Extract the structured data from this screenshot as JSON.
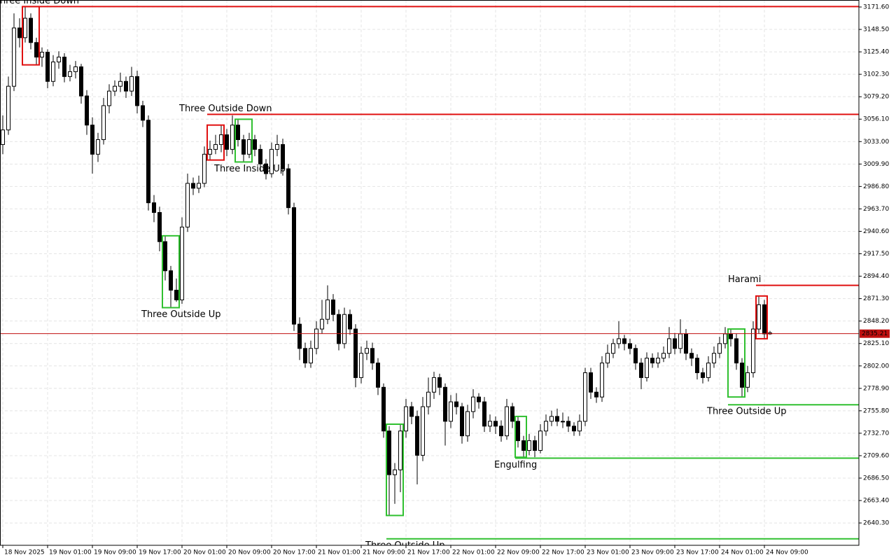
{
  "chart_data": {
    "type": "candlestick",
    "categories": [
      "18 Nov 2025",
      null,
      null,
      null,
      null,
      null,
      null,
      null,
      "19 Nov 01:00",
      null,
      null,
      null,
      null,
      null,
      null,
      null,
      "19 Nov 09:00",
      null,
      null,
      null,
      null,
      null,
      null,
      null,
      "19 Nov 17:00",
      null,
      null,
      null,
      null,
      null,
      null,
      null,
      "20 Nov 01:00",
      null,
      null,
      null,
      null,
      null,
      null,
      null,
      "20 Nov 09:00",
      null,
      null,
      null,
      null,
      null,
      null,
      null,
      "20 Nov 17:00",
      null,
      null,
      null,
      null,
      null,
      null,
      null,
      "21 Nov 01:00",
      null,
      null,
      null,
      null,
      null,
      null,
      null,
      "21 Nov 09:00",
      null,
      null,
      null,
      null,
      null,
      null,
      null,
      "21 Nov 17:00",
      null,
      null,
      null,
      null,
      null,
      null,
      null,
      "22 Nov 01:00",
      null,
      null,
      null,
      null,
      null,
      null,
      null,
      "22 Nov 09:00",
      null,
      null,
      null,
      null,
      null,
      null,
      null,
      "22 Nov 17:00",
      null,
      null,
      null,
      null,
      null,
      null,
      null,
      "23 Nov 01:00",
      null,
      null,
      null,
      null,
      null,
      null,
      null,
      "23 Nov 09:00",
      null,
      null,
      null,
      null,
      null,
      null,
      null,
      "23 Nov 17:00",
      null,
      null,
      null,
      null,
      null,
      null,
      null,
      "24 Nov 01:00",
      null,
      null,
      null,
      null,
      null,
      null,
      null,
      "24 Nov 09:00",
      null
    ],
    "candles": [
      [
        3030,
        3060,
        3020,
        3045
      ],
      [
        3045,
        3100,
        3040,
        3090
      ],
      [
        3090,
        3165,
        3085,
        3150
      ],
      [
        3150,
        3160,
        3130,
        3140
      ],
      [
        3140,
        3172,
        3135,
        3160
      ],
      [
        3160,
        3165,
        3128,
        3135
      ],
      [
        3135,
        3140,
        3112,
        3120
      ],
      [
        3120,
        3130,
        3110,
        3125
      ],
      [
        3125,
        3128,
        3088,
        3095
      ],
      [
        3095,
        3122,
        3090,
        3115
      ],
      [
        3115,
        3126,
        3108,
        3120
      ],
      [
        3120,
        3124,
        3094,
        3100
      ],
      [
        3100,
        3112,
        3095,
        3105
      ],
      [
        3105,
        3116,
        3098,
        3110
      ],
      [
        3110,
        3113,
        3072,
        3080
      ],
      [
        3080,
        3086,
        3040,
        3050
      ],
      [
        3050,
        3058,
        3000,
        3020
      ],
      [
        3020,
        3042,
        3012,
        3035
      ],
      [
        3035,
        3078,
        3030,
        3070
      ],
      [
        3070,
        3092,
        3062,
        3085
      ],
      [
        3085,
        3096,
        3080,
        3090
      ],
      [
        3090,
        3104,
        3084,
        3095
      ],
      [
        3095,
        3100,
        3078,
        3085
      ],
      [
        3085,
        3110,
        3080,
        3100
      ],
      [
        3100,
        3106,
        3062,
        3070
      ],
      [
        3070,
        3075,
        3048,
        3055
      ],
      [
        3055,
        3060,
        2962,
        2970
      ],
      [
        2970,
        2978,
        2950,
        2960
      ],
      [
        2960,
        2966,
        2920,
        2930
      ],
      [
        2930,
        2936,
        2890,
        2900
      ],
      [
        2900,
        2905,
        2862,
        2880
      ],
      [
        2880,
        2892,
        2868,
        2870
      ],
      [
        2870,
        2955,
        2866,
        2945
      ],
      [
        2945,
        3000,
        2940,
        2990
      ],
      [
        2990,
        2996,
        2978,
        2985
      ],
      [
        2985,
        2998,
        2980,
        2990
      ],
      [
        2990,
        3028,
        2986,
        3020
      ],
      [
        3020,
        3034,
        3014,
        3025
      ],
      [
        3025,
        3040,
        3020,
        3030
      ],
      [
        3030,
        3050,
        3022,
        3040
      ],
      [
        3040,
        3046,
        3018,
        3025
      ],
      [
        3025,
        3060,
        3020,
        3050
      ],
      [
        3050,
        3056,
        3028,
        3035
      ],
      [
        3035,
        3040,
        3012,
        3020
      ],
      [
        3020,
        3042,
        3016,
        3035
      ],
      [
        3035,
        3040,
        3018,
        3025
      ],
      [
        3025,
        3030,
        3002,
        3010
      ],
      [
        3010,
        3015,
        2994,
        3000
      ],
      [
        3000,
        3032,
        2996,
        3025
      ],
      [
        3025,
        3040,
        3018,
        3030
      ],
      [
        3030,
        3036,
        2998,
        3005
      ],
      [
        3005,
        3010,
        2958,
        2965
      ],
      [
        2965,
        2970,
        2838,
        2845
      ],
      [
        2845,
        2852,
        2808,
        2820
      ],
      [
        2820,
        2826,
        2800,
        2805
      ],
      [
        2805,
        2828,
        2800,
        2820
      ],
      [
        2820,
        2848,
        2814,
        2840
      ],
      [
        2840,
        2870,
        2835,
        2850
      ],
      [
        2850,
        2885,
        2845,
        2870
      ],
      [
        2870,
        2876,
        2848,
        2855
      ],
      [
        2855,
        2860,
        2818,
        2825
      ],
      [
        2825,
        2862,
        2820,
        2855
      ],
      [
        2855,
        2860,
        2834,
        2840
      ],
      [
        2840,
        2845,
        2780,
        2790
      ],
      [
        2790,
        2822,
        2784,
        2815
      ],
      [
        2815,
        2828,
        2808,
        2820
      ],
      [
        2820,
        2826,
        2798,
        2805
      ],
      [
        2805,
        2810,
        2772,
        2780
      ],
      [
        2780,
        2784,
        2728,
        2735
      ],
      [
        2735,
        2740,
        2648,
        2690
      ],
      [
        2690,
        2702,
        2660,
        2695
      ],
      [
        2695,
        2742,
        2672,
        2735
      ],
      [
        2735,
        2768,
        2728,
        2760
      ],
      [
        2760,
        2765,
        2742,
        2750
      ],
      [
        2750,
        2756,
        2680,
        2710
      ],
      [
        2710,
        2770,
        2704,
        2760
      ],
      [
        2760,
        2790,
        2752,
        2775
      ],
      [
        2775,
        2796,
        2768,
        2790
      ],
      [
        2790,
        2794,
        2772,
        2780
      ],
      [
        2780,
        2784,
        2720,
        2745
      ],
      [
        2745,
        2772,
        2738,
        2765
      ],
      [
        2765,
        2774,
        2752,
        2760
      ],
      [
        2760,
        2764,
        2722,
        2730
      ],
      [
        2730,
        2762,
        2724,
        2755
      ],
      [
        2755,
        2778,
        2748,
        2770
      ],
      [
        2770,
        2774,
        2758,
        2765
      ],
      [
        2765,
        2770,
        2734,
        2740
      ],
      [
        2740,
        2752,
        2734,
        2745
      ],
      [
        2745,
        2750,
        2732,
        2740
      ],
      [
        2740,
        2746,
        2724,
        2730
      ],
      [
        2730,
        2768,
        2726,
        2760
      ],
      [
        2760,
        2764,
        2738,
        2745
      ],
      [
        2745,
        2750,
        2718,
        2725
      ],
      [
        2725,
        2730,
        2708,
        2715
      ],
      [
        2715,
        2732,
        2710,
        2725
      ],
      [
        2725,
        2730,
        2708,
        2715
      ],
      [
        2715,
        2742,
        2712,
        2735
      ],
      [
        2735,
        2752,
        2730,
        2745
      ],
      [
        2745,
        2756,
        2740,
        2750
      ],
      [
        2750,
        2758,
        2740,
        2745
      ],
      [
        2745,
        2754,
        2738,
        2745
      ],
      [
        2745,
        2750,
        2734,
        2740
      ],
      [
        2740,
        2744,
        2730,
        2735
      ],
      [
        2735,
        2752,
        2730,
        2745
      ],
      [
        2745,
        2800,
        2740,
        2795
      ],
      [
        2795,
        2800,
        2768,
        2775
      ],
      [
        2775,
        2780,
        2764,
        2770
      ],
      [
        2770,
        2812,
        2765,
        2805
      ],
      [
        2805,
        2824,
        2800,
        2815
      ],
      [
        2815,
        2830,
        2810,
        2825
      ],
      [
        2825,
        2848,
        2820,
        2830
      ],
      [
        2830,
        2834,
        2818,
        2825
      ],
      [
        2825,
        2830,
        2814,
        2820
      ],
      [
        2820,
        2824,
        2798,
        2805
      ],
      [
        2805,
        2810,
        2778,
        2790
      ],
      [
        2790,
        2816,
        2786,
        2810
      ],
      [
        2810,
        2815,
        2800,
        2805
      ],
      [
        2805,
        2816,
        2800,
        2810
      ],
      [
        2810,
        2822,
        2806,
        2815
      ],
      [
        2815,
        2842,
        2810,
        2830
      ],
      [
        2830,
        2836,
        2814,
        2820
      ],
      [
        2820,
        2850,
        2815,
        2835
      ],
      [
        2835,
        2840,
        2808,
        2815
      ],
      [
        2815,
        2820,
        2802,
        2810
      ],
      [
        2810,
        2814,
        2788,
        2795
      ],
      [
        2795,
        2800,
        2784,
        2790
      ],
      [
        2790,
        2812,
        2786,
        2805
      ],
      [
        2805,
        2822,
        2800,
        2815
      ],
      [
        2815,
        2832,
        2810,
        2825
      ],
      [
        2825,
        2842,
        2820,
        2835
      ],
      [
        2835,
        2840,
        2822,
        2830
      ],
      [
        2830,
        2835,
        2798,
        2805
      ],
      [
        2805,
        2810,
        2770,
        2780
      ],
      [
        2780,
        2802,
        2775,
        2795
      ],
      [
        2795,
        2848,
        2790,
        2840
      ],
      [
        2840,
        2874,
        2835,
        2865
      ],
      [
        2865,
        2870,
        2830,
        2835
      ],
      [
        2835,
        2838,
        2834,
        2836
      ]
    ],
    "ylim": [
      2617.3,
      3178.8
    ],
    "yticks": [
      {
        "value": 3171.6,
        "label": "3171.60"
      },
      {
        "value": 3148.5,
        "label": "3148.50"
      },
      {
        "value": 3125.4,
        "label": "3125.40"
      },
      {
        "value": 3102.3,
        "label": "3102.30"
      },
      {
        "value": 3079.2,
        "label": "3079.20"
      },
      {
        "value": 3056.1,
        "label": "3056.10"
      },
      {
        "value": 3033,
        "label": "3033.00"
      },
      {
        "value": 3009.9,
        "label": "3009.90"
      },
      {
        "value": 2986.8,
        "label": "2986.80"
      },
      {
        "value": 2963.7,
        "label": "2963.70"
      },
      {
        "value": 2940.6,
        "label": "2940.60"
      },
      {
        "value": 2917.5,
        "label": "2917.50"
      },
      {
        "value": 2894.4,
        "label": "2894.40"
      },
      {
        "value": 2871.3,
        "label": "2871.30"
      },
      {
        "value": 2848.2,
        "label": "2848.20"
      },
      {
        "value": 2825.1,
        "label": "2825.10"
      },
      {
        "value": 2802,
        "label": "2802.00"
      },
      {
        "value": 2778.9,
        "label": "2778.90"
      },
      {
        "value": 2755.8,
        "label": "2755.80"
      },
      {
        "value": 2732.7,
        "label": "2732.70"
      },
      {
        "value": 2709.6,
        "label": "2709.60"
      },
      {
        "value": 2686.5,
        "label": "2686.50"
      },
      {
        "value": 2663.4,
        "label": "2663.40"
      },
      {
        "value": 2640.3,
        "label": "2640.30"
      }
    ],
    "grid": true,
    "up_color": "#ffffff",
    "down_color": "#000000",
    "last_price": 2835.21,
    "last_price_color": "#c01010",
    "patterns": [
      {
        "name": "Three Inside Down",
        "color": "#e01010",
        "bars": [
          4,
          6
        ],
        "level": 3172
      },
      {
        "name": "Three Outside Down",
        "color": "#e01010",
        "bars": [
          37,
          39
        ],
        "level": 3061
      },
      {
        "name": "Three Inside Up",
        "color": "#30c030",
        "bars": [
          42,
          44
        ]
      },
      {
        "name": "Three Outside Up",
        "color": "#30c030",
        "bars": [
          29,
          31
        ]
      },
      {
        "name": "Three Outside Up",
        "color": "#30c030",
        "bars": [
          69,
          71
        ],
        "level": 2624
      },
      {
        "name": "Engulfing",
        "color": "#30c030",
        "bars": [
          92,
          93
        ],
        "level": 2707
      },
      {
        "name": "Three Outside Up",
        "color": "#30c030",
        "bars": [
          130,
          132
        ],
        "level": 2762
      },
      {
        "name": "Harami",
        "color": "#e01010",
        "bars": [
          135,
          136
        ],
        "level": 2885
      }
    ]
  }
}
